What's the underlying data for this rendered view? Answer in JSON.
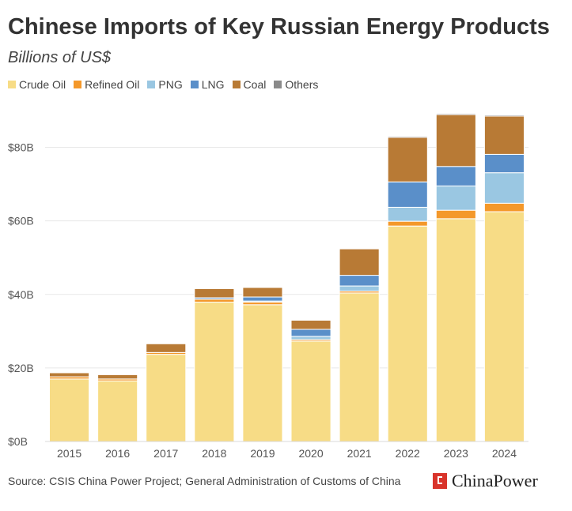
{
  "header": {
    "title": "Chinese Imports of Key Russian Energy Products",
    "subtitle": "Billions of US$"
  },
  "footer": {
    "source": "Source: CSIS China Power Project; General Administration of Customs of China",
    "brand": "ChinaPower"
  },
  "colors": {
    "crude_oil": "#f7dc86",
    "refined_oil": "#f4982a",
    "png": "#9ac7e2",
    "lng": "#5a8fc9",
    "coal": "#b87a35",
    "others": "#8a8a8a",
    "grid": "#e8e8e8",
    "axis_text": "#555555"
  },
  "chart_data": {
    "type": "bar",
    "stacked": true,
    "categories": [
      "2015",
      "2016",
      "2017",
      "2018",
      "2019",
      "2020",
      "2021",
      "2022",
      "2023",
      "2024"
    ],
    "series": [
      {
        "name": "Crude Oil",
        "color_key": "crude_oil",
        "values": [
          17.0,
          16.5,
          23.7,
          37.9,
          37.2,
          27.3,
          40.4,
          58.6,
          60.6,
          62.5
        ]
      },
      {
        "name": "Refined Oil",
        "color_key": "refined_oil",
        "values": [
          0.6,
          0.5,
          0.5,
          0.8,
          0.7,
          0.4,
          0.5,
          1.3,
          2.3,
          2.3
        ]
      },
      {
        "name": "PNG",
        "color_key": "png",
        "values": [
          0.0,
          0.0,
          0.0,
          0.0,
          0.3,
          0.9,
          1.4,
          3.8,
          6.6,
          8.3
        ]
      },
      {
        "name": "LNG",
        "color_key": "lng",
        "values": [
          0.0,
          0.0,
          0.0,
          0.4,
          1.1,
          1.9,
          2.9,
          6.9,
          5.3,
          5.0
        ]
      },
      {
        "name": "Coal",
        "color_key": "coal",
        "values": [
          1.1,
          1.2,
          2.4,
          2.5,
          2.6,
          2.5,
          7.2,
          12.1,
          14.1,
          10.4
        ]
      },
      {
        "name": "Others",
        "color_key": "others",
        "values": [
          0.2,
          0.2,
          0.2,
          0.2,
          0.2,
          0.2,
          0.2,
          0.3,
          0.3,
          0.3
        ]
      }
    ],
    "yticks": [
      "$0B",
      "$20B",
      "$40B",
      "$60B",
      "$80B"
    ],
    "ytick_values": [
      0,
      20,
      40,
      60,
      80
    ],
    "ylim": [
      0,
      90
    ],
    "xlabel": "",
    "ylabel": "",
    "grid": true,
    "legend_position": "top-left"
  }
}
